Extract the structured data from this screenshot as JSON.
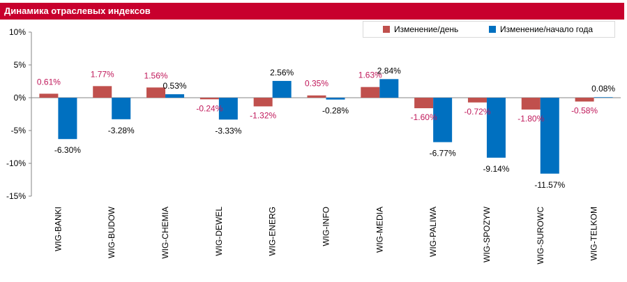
{
  "chart_data": {
    "type": "bar",
    "title": "Динамика отраслевых индексов",
    "categories": [
      "WIG-BANKI",
      "WIG-BUDOW",
      "WIG-CHEMIA",
      "WIG-DEWEL",
      "WIG-ENERG",
      "WIG-INFO",
      "WIG-MEDIA",
      "WIG-PALIWA",
      "WIG-SPOZYW",
      "WIG-SUROWC",
      "WIG-TELKOM"
    ],
    "series": [
      {
        "name": "Изменение/день",
        "color": "#c0504d",
        "values": [
          0.61,
          1.77,
          1.56,
          -0.24,
          -1.32,
          0.35,
          1.63,
          -1.6,
          -0.72,
          -1.8,
          -0.58
        ],
        "labels": [
          "0.61%",
          "1.77%",
          "1.56%",
          "-0.24%",
          "-1.32%",
          "0.35%",
          "1.63%",
          "-1.60%",
          "-0.72%",
          "-1.80%",
          "-0.58%"
        ]
      },
      {
        "name": "Изменение/начало года",
        "color": "#0070c0",
        "values": [
          -6.3,
          -3.28,
          0.53,
          -3.33,
          2.56,
          -0.28,
          2.84,
          -6.77,
          -9.14,
          -11.57,
          0.08
        ],
        "labels": [
          "-6.30%",
          "-3.28%",
          "0.53%",
          "-3.33%",
          "2.56%",
          "-0.28%",
          "2.84%",
          "-6.77%",
          "-9.14%",
          "-11.57%",
          "0.08%"
        ]
      }
    ],
    "ylim": [
      -15,
      10
    ],
    "yticks": [
      10,
      5,
      0,
      -5,
      -10,
      -15
    ],
    "ytick_labels": [
      "10%",
      "5%",
      "0%",
      "-5%",
      "-10%",
      "-15%"
    ],
    "label_colors": {
      "day": "#c0185a",
      "year": "#000000"
    },
    "legend": "top-right",
    "grid": false
  }
}
